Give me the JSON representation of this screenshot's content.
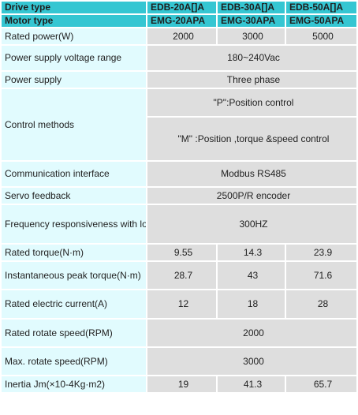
{
  "header": {
    "drive_type_label": "Drive type",
    "drive_models": [
      "EDB-20A[]A",
      "EDB-30A[]A",
      "EDB-50A[]A"
    ],
    "motor_type_label": "Motor type",
    "motor_models": [
      "EMG-20APA",
      "EMG-30APA",
      "EMG-50APA"
    ]
  },
  "rows": {
    "rated_power": {
      "label": "Rated power(W)",
      "values": [
        "2000",
        "3000",
        "5000"
      ]
    },
    "voltage": {
      "label": "Power supply voltage range",
      "value": "180~240Vac"
    },
    "power_supply": {
      "label": "Power supply",
      "value": "Three phase"
    },
    "control": {
      "label": "Control methods",
      "value_p": "\"P\":Position control",
      "value_m": "\"M\" :Position ,torque &speed control"
    },
    "comm": {
      "label": "Communication interface",
      "value": "Modbus RS485"
    },
    "feedback": {
      "label": "Servo feedback",
      "value": "2500P/R encoder"
    },
    "frequency": {
      "label": "Frequency responsiveness with load",
      "value": "300HZ"
    },
    "rated_torque": {
      "label": "Rated torque(N·m)",
      "values": [
        "9.55",
        "14.3",
        "23.9"
      ]
    },
    "peak_torque": {
      "label": "Instantaneous peak torque(N·m)",
      "values": [
        "28.7",
        "43",
        "71.6"
      ]
    },
    "current": {
      "label": "Rated electric current(A)",
      "values": [
        "12",
        "18",
        "28"
      ]
    },
    "rated_speed": {
      "label": "Rated rotate speed(RPM)",
      "value": "2000"
    },
    "max_speed": {
      "label": "Max. rotate speed(RPM)",
      "value": "3000"
    },
    "inertia": {
      "label": "Inertia Jm(×10-4Kg·m2)",
      "values": [
        "19",
        "41.3",
        "65.7"
      ]
    }
  },
  "colors": {
    "header_bg": "#35c6d2",
    "label_bg": "#e1fbfe",
    "value_bg": "#dedede"
  }
}
